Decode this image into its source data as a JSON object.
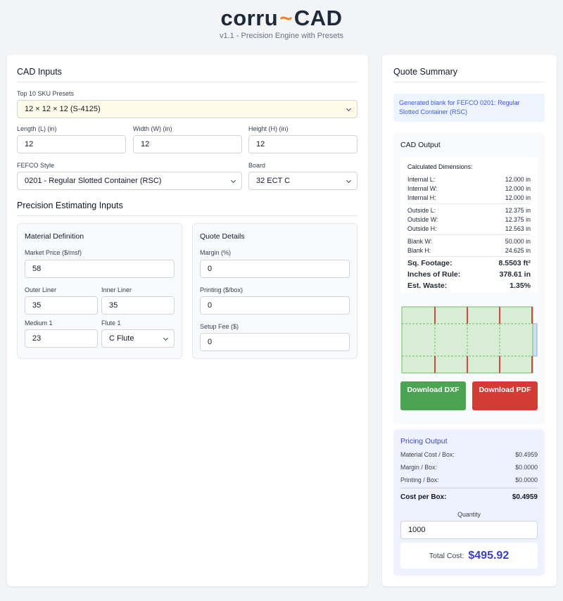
{
  "brand": {
    "name_left": "corru",
    "tilde": "~",
    "name_right": "CAD",
    "subtitle": "v1.1 - Precision Engine with Presets"
  },
  "cad_inputs": {
    "title": "CAD Inputs",
    "preset_label": "Top 10 SKU Presets",
    "preset_value": "12 × 12 × 12 (S-4125)",
    "length_label": "Length (L) (in)",
    "length_value": "12",
    "width_label": "Width (W) (in)",
    "width_value": "12",
    "height_label": "Height (H) (in)",
    "height_value": "12",
    "fefco_label": "FEFCO Style",
    "fefco_value": "0201 - Regular Slotted Container (RSC)",
    "board_label": "Board",
    "board_value": "32 ECT C"
  },
  "precision": {
    "title": "Precision Estimating Inputs",
    "material": {
      "title": "Material Definition",
      "market_price_label": "Market Price ($/msf)",
      "market_price_value": "58",
      "outer_liner_label": "Outer Liner",
      "outer_liner_value": "35",
      "inner_liner_label": "Inner Liner",
      "inner_liner_value": "35",
      "medium_label": "Medium 1",
      "medium_value": "23",
      "flute_label": "Flute 1",
      "flute_value": "C Flute"
    },
    "quote": {
      "title": "Quote Details",
      "margin_label": "Margin (%)",
      "margin_value": "0",
      "printing_label": "Printing ($/box)",
      "printing_value": "0",
      "setup_label": "Setup Fee ($)",
      "setup_value": "0"
    }
  },
  "summary": {
    "title": "Quote Summary",
    "info": "Generated blank for FEFCO 0201: Regular Slotted Container (RSC)",
    "cad_output_title": "CAD Output",
    "dims_title": "Calculated Dimensions:",
    "rows": [
      {
        "label": "Internal L:",
        "value": "12.000 in"
      },
      {
        "label": "Internal W:",
        "value": "12.000 in"
      },
      {
        "label": "Internal H:",
        "value": "12.000 in"
      },
      {
        "label": "Outside L:",
        "value": "12.375 in"
      },
      {
        "label": "Outside W:",
        "value": "12.375 in"
      },
      {
        "label": "Outside H:",
        "value": "12.563 in"
      },
      {
        "label": "Blank W:",
        "value": "50.000 in"
      },
      {
        "label": "Blank H:",
        "value": "24.625 in"
      }
    ],
    "totals": [
      {
        "label": "Sq. Footage:",
        "value": "8.5503 ft²"
      },
      {
        "label": "Inches of Rule:",
        "value": "378.61 in"
      },
      {
        "label": "Est. Waste:",
        "value": "1.35%"
      }
    ],
    "download_dxf": "Download DXF",
    "download_pdf": "Download PDF",
    "colors": {
      "panel_fill": "#d8ecd6",
      "cut": "#cc3b33",
      "crease": "#6abf69",
      "glue_tab": "#cfe0f7"
    }
  },
  "pricing": {
    "title": "Pricing Output",
    "material_label": "Material Cost / Box:",
    "material_value": "$0.4959",
    "margin_label": "Margin / Box:",
    "margin_value": "$0.0000",
    "printing_label": "Printing / Box:",
    "printing_value": "$0.0000",
    "cost_label": "Cost per Box:",
    "cost_value": "$0.4959",
    "quantity_label": "Quantity",
    "quantity_value": "1000",
    "total_label": "Total Cost:",
    "total_value": "$495.92"
  }
}
